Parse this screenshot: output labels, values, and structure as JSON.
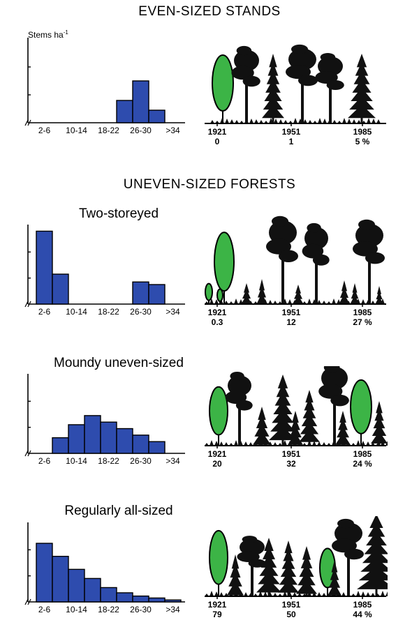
{
  "headings": {
    "even": "EVEN-SIZED STANDS",
    "uneven": "UNEVEN-SIZED FORESTS"
  },
  "ylabel": {
    "text": "Stems ha",
    "sup": "-1"
  },
  "colors": {
    "bar": "#2e4cae",
    "conifer": "#111111",
    "broadleaf": "#3cb446"
  },
  "chart_data": [
    {
      "type": "bar",
      "title": "",
      "ylabel": "Stems ha-1",
      "categories": [
        "2-6",
        "6-10",
        "10-14",
        "14-18",
        "18-22",
        "22-26",
        "26-30",
        "30-34",
        ">34"
      ],
      "tick_labels": [
        "2-6",
        "10-14",
        "18-22",
        "26-30",
        ">34"
      ],
      "values": [
        0,
        0,
        0,
        0,
        0,
        1.6,
        3.0,
        0.9,
        0
      ],
      "ylim": [
        0,
        6
      ],
      "years": [
        "1921",
        "1951",
        "1985"
      ],
      "shares": [
        "0",
        "1",
        "5 %"
      ]
    },
    {
      "type": "bar",
      "title": "Two-storeyed",
      "categories": [
        "2-6",
        "6-10",
        "10-14",
        "14-18",
        "18-22",
        "22-26",
        "26-30",
        "30-34",
        ">34"
      ],
      "tick_labels": [
        "2-6",
        "10-14",
        "18-22",
        "26-30",
        ">34"
      ],
      "values": [
        5.6,
        2.3,
        0,
        0,
        0,
        0,
        1.7,
        1.5,
        0
      ],
      "ylim": [
        0,
        6
      ],
      "years": [
        "1921",
        "1951",
        "1985"
      ],
      "shares": [
        "0.3",
        "12",
        "27 %"
      ]
    },
    {
      "type": "bar",
      "title": "Moundy uneven-sized",
      "categories": [
        "2-6",
        "6-10",
        "10-14",
        "14-18",
        "18-22",
        "22-26",
        "26-30",
        "30-34",
        ">34"
      ],
      "tick_labels": [
        "2-6",
        "10-14",
        "18-22",
        "26-30",
        ">34"
      ],
      "values": [
        0,
        1.2,
        2.2,
        2.9,
        2.4,
        1.9,
        1.4,
        0.9,
        0
      ],
      "ylim": [
        0,
        6
      ],
      "years": [
        "1921",
        "1951",
        "1985"
      ],
      "shares": [
        "20",
        "32",
        "24 %"
      ]
    },
    {
      "type": "bar",
      "title": "Regularly all-sized",
      "categories": [
        "2-6",
        "6-10",
        "10-14",
        "14-18",
        "18-22",
        "22-26",
        "26-30",
        "30-34",
        ">34"
      ],
      "tick_labels": [
        "2-6",
        "10-14",
        "18-22",
        "26-30",
        ">34"
      ],
      "values": [
        4.5,
        3.5,
        2.5,
        1.8,
        1.1,
        0.7,
        0.45,
        0.3,
        0.15
      ],
      "ylim": [
        0,
        6
      ],
      "years": [
        "1921",
        "1951",
        "1985"
      ],
      "shares": [
        "79",
        "50",
        "44 %"
      ]
    }
  ]
}
